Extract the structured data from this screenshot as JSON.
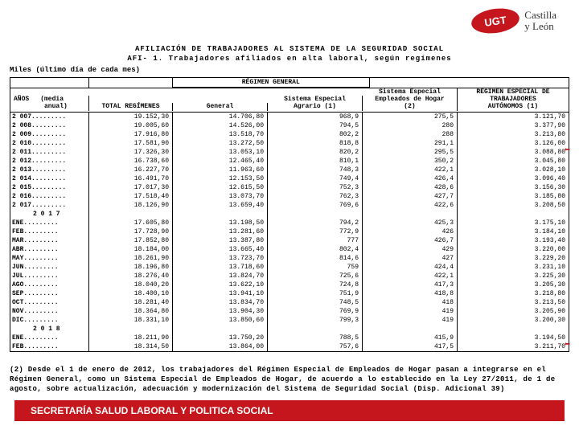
{
  "logo": {
    "text": "UGT",
    "region": "Castilla\ny León"
  },
  "titles": {
    "t1": "AFILIACIÓN DE TRABAJADORES AL SISTEMA DE LA SEGURIDAD SOCIAL",
    "t2": "AFI- 1. Trabajadores afiliados en alta laboral, según regímenes",
    "sub": "Miles (último día de cada mes)"
  },
  "headers": {
    "years_a": "AÑOS",
    "years_b": "(media",
    "years_c": "anual)",
    "total": "TOTAL REGÍMENES",
    "regimen": "RÉGIMEN GENERAL",
    "gen": "General",
    "agr_a": "Sistema Especial",
    "agr_b": "Agrario (1)",
    "hog_a": "Sistema Especial",
    "hog_b": "Empleados de Hogar",
    "hog_c": "(2)",
    "aut_a": "RÉGIMEN ESPECIAL DE",
    "aut_b": "TRABAJADORES",
    "aut_c": "AUTÓNOMOS (1)"
  },
  "sections": {
    "s2017": "2 0 1 7",
    "s2018": "2 0 1 8"
  },
  "rows": [
    {
      "y": "2 007",
      "t": "19.152,30",
      "g": "14.706,80",
      "a": "968,9",
      "h": "275,5",
      "u": "3.121,70"
    },
    {
      "y": "2 008",
      "t": "19.005,60",
      "g": "14.526,00",
      "a": "794,5",
      "h": "280",
      "u": "3.377,90"
    },
    {
      "y": "2 009",
      "t": "17.916,80",
      "g": "13.518,70",
      "a": "802,2",
      "h": "288",
      "u": "3.213,80"
    },
    {
      "y": "2 010",
      "t": "17.581,90",
      "g": "13.272,50",
      "a": "818,8",
      "h": "291,1",
      "u": "3.126,00"
    },
    {
      "y": "2 011",
      "t": "17.326,30",
      "g": "13.053,10",
      "a": "820,2",
      "h": "295,5",
      "u": "3.088,80",
      "arrow": true
    },
    {
      "y": "2 012",
      "t": "16.738,60",
      "g": "12.465,40",
      "a": "810,1",
      "h": "350,2",
      "u": "3.045,80"
    },
    {
      "y": "2 013",
      "t": "16.227,70",
      "g": "11.963,60",
      "a": "748,3",
      "h": "422,1",
      "u": "3.028,10"
    },
    {
      "y": "2 014",
      "t": "16.491,70",
      "g": "12.153,50",
      "a": "749,4",
      "h": "426,4",
      "u": "3.096,40"
    },
    {
      "y": "2 015",
      "t": "17.017,30",
      "g": "12.615,50",
      "a": "752,3",
      "h": "428,6",
      "u": "3.156,30"
    },
    {
      "y": "2 016",
      "t": "17.518,40",
      "g": "13.073,70",
      "a": "762,3",
      "h": "427,7",
      "u": "3.185,80"
    },
    {
      "y": "2 017",
      "t": "18.126,90",
      "g": "13.659,40",
      "a": "769,6",
      "h": "422,6",
      "u": "3.208,50"
    }
  ],
  "rows2017": [
    {
      "y": "ENE",
      "t": "17.605,80",
      "g": "13.198,50",
      "a": "794,2",
      "h": "425,3",
      "u": "3.175,10"
    },
    {
      "y": "FEB",
      "t": "17.728,90",
      "g": "13.281,60",
      "a": "772,9",
      "h": "426",
      "u": "3.184,10"
    },
    {
      "y": "MAR",
      "t": "17.852,80",
      "g": "13.387,80",
      "a": "777",
      "h": "426,7",
      "u": "3.193,40"
    },
    {
      "y": "ABR",
      "t": "18.184,00",
      "g": "13.665,40",
      "a": "802,4",
      "h": "429",
      "u": "3.220,00"
    },
    {
      "y": "MAY",
      "t": "18.261,90",
      "g": "13.723,70",
      "a": "814,6",
      "h": "427",
      "u": "3.229,20"
    },
    {
      "y": "JUN",
      "t": "18.196,80",
      "g": "13.718,60",
      "a": "759",
      "h": "424,4",
      "u": "3.231,10"
    },
    {
      "y": "JUL",
      "t": "18.276,40",
      "g": "13.824,70",
      "a": "725,6",
      "h": "422,1",
      "u": "3.225,30"
    },
    {
      "y": "AGO",
      "t": "18.040,20",
      "g": "13.622,10",
      "a": "724,8",
      "h": "417,3",
      "u": "3.205,30"
    },
    {
      "y": "SEP",
      "t": "18.400,10",
      "g": "13.941,10",
      "a": "751,9",
      "h": "418,8",
      "u": "3.218,80"
    },
    {
      "y": "OCT",
      "t": "18.281,40",
      "g": "13.834,70",
      "a": "748,5",
      "h": "418",
      "u": "3.213,50"
    },
    {
      "y": "NOV",
      "t": "18.364,80",
      "g": "13.904,30",
      "a": "769,9",
      "h": "419",
      "u": "3.205,90"
    },
    {
      "y": "DIC",
      "t": "18.331,10",
      "g": "13.850,60",
      "a": "799,3",
      "h": "419",
      "u": "3.200,30"
    }
  ],
  "rows2018": [
    {
      "y": "ENE",
      "t": "18.211,90",
      "g": "13.750,20",
      "a": "788,5",
      "h": "415,9",
      "u": "3.194,50"
    },
    {
      "y": "FEB",
      "t": "18.314,50",
      "g": "13.864,00",
      "a": "757,6",
      "h": "417,5",
      "u": "3.211,70",
      "arrow": true
    }
  ],
  "note": "(2) Desde el 1 de enero de 2012, los trabajadores del Régimen Especial de Empleados de Hogar pasan a integrarse en el Régimen General, como un Sistema Especial de Empleados de Hogar, de acuerdo a lo establecido en la Ley 27/2011, de 1 de agosto, sobre actualización, adecuación y modernización del Sistema de Seguridad Social (Disp. Adicional 39)",
  "footer": "SECRETARÍA SALUD LABORAL Y POLITICA SOCIAL",
  "colors": {
    "brand": "#c4161c"
  }
}
